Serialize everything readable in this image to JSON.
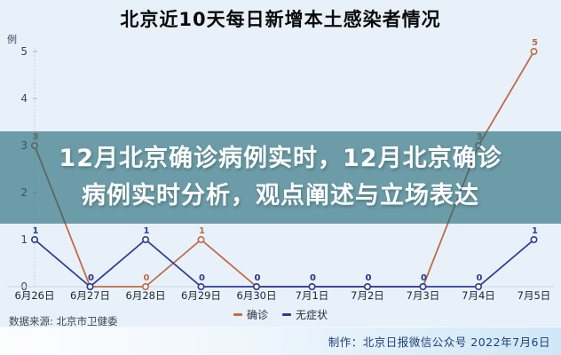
{
  "header": {
    "title": "北京近10天每日新增本土感染者情况"
  },
  "overlay": {
    "line1": "12月北京确诊病例实时，12月北京确诊",
    "line2": "病例实时分析，观点阐述与立场表达",
    "background_rgba": "rgba(33,104,117,0.62)",
    "text_color": "#ffffff"
  },
  "chart_data": {
    "type": "line",
    "title": "北京近10天每日新增本土感染者情况",
    "unit_label": "例",
    "categories": [
      "6月26日",
      "6月27日",
      "6月28日",
      "6月29日",
      "6月30日",
      "7月1日",
      "7月2日",
      "7月3日",
      "7月4日",
      "7月5日"
    ],
    "series": [
      {
        "name": "确诊",
        "color": "#bf6b4a",
        "values": [
          3,
          0,
          0,
          1,
          0,
          0,
          0,
          0,
          3,
          5
        ]
      },
      {
        "name": "无症状",
        "color": "#2c3c94",
        "values": [
          1,
          0,
          1,
          0,
          0,
          0,
          0,
          0,
          0,
          1
        ]
      }
    ],
    "ylim": [
      0,
      5
    ],
    "yticks": [
      0,
      1,
      2,
      3,
      4,
      5
    ],
    "grid": false,
    "marker": "open-circle",
    "data_labels": true,
    "legend_position": "bottom",
    "axis_label_color": "#37485e",
    "x_label_color": "#1e252e",
    "axis_line_color": "#c9d6e2"
  },
  "footer": {
    "source": "数据来源: 北京市卫健委",
    "credit": "制作：北京日报微信公众号  2022年7月6日"
  }
}
